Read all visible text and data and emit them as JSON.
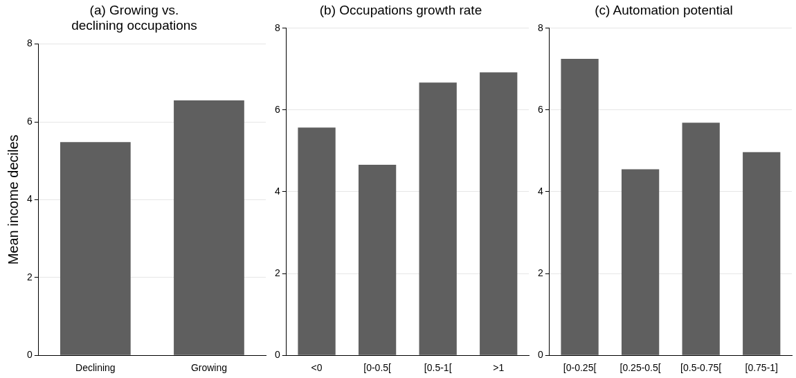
{
  "chart_data": [
    {
      "type": "bar",
      "title": "(a) Growing vs.\ndeclining occupations",
      "ylabel": "Mean income deciles",
      "categories": [
        "Declining",
        "Growing"
      ],
      "values": [
        5.48,
        6.55
      ],
      "color": "#5f5f5f",
      "ylim": [
        0,
        8
      ],
      "yticks": [
        0,
        2,
        4,
        6,
        8
      ],
      "grid": "y",
      "legend": false
    },
    {
      "type": "bar",
      "title": "(b) Occupations growth rate",
      "categories": [
        "<0",
        "[0-0.5[",
        "[0.5-1[",
        ">1"
      ],
      "values": [
        5.57,
        4.66,
        6.67,
        6.92
      ],
      "color": "#5f5f5f",
      "ylim": [
        0,
        8
      ],
      "yticks": [
        0,
        2,
        4,
        6,
        8
      ],
      "grid": "y",
      "legend": false
    },
    {
      "type": "bar",
      "title": "(c) Automation potential",
      "categories": [
        "[0-0.25[",
        "[0.25-0.5[",
        "[0.5-0.75[",
        "[0.75-1]"
      ],
      "values": [
        7.25,
        4.55,
        5.69,
        4.97
      ],
      "color": "#5f5f5f",
      "ylim": [
        0,
        8
      ],
      "yticks": [
        0,
        2,
        4,
        6,
        8
      ],
      "grid": "y",
      "legend": false
    }
  ]
}
